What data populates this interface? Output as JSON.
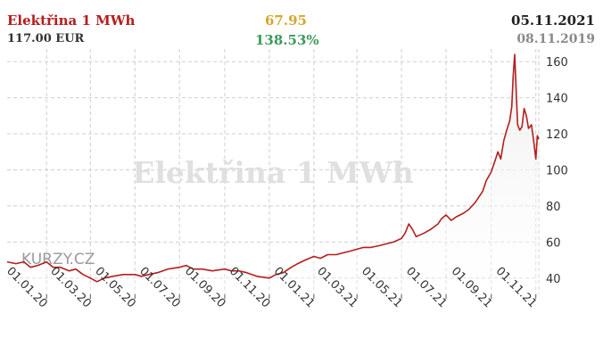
{
  "header": {
    "title": "Elektřina 1 MWh",
    "price": "117.00 EUR",
    "change_abs": "67.95",
    "change_pct": "138.53%",
    "date_end": "05.11.2021",
    "date_start": "08.11.2019"
  },
  "watermark": "Elektřina 1 MWh",
  "logo_text": "KURZY.CZ",
  "colors": {
    "line": "#b41e1e",
    "area_top": "#ececec",
    "grid": "#cfcfcf",
    "title": "#b41e1e",
    "change_abs": "#d4a72c",
    "change_pct": "#3c9a5a"
  },
  "chart_data": {
    "type": "area",
    "title": "",
    "xlabel": "",
    "ylabel": "",
    "ylim": [
      31,
      167
    ],
    "y_ticks": [
      40,
      60,
      80,
      100,
      120,
      140,
      160
    ],
    "x_ticks": [
      "01.01.20",
      "01.03.20",
      "01.05.20",
      "01.07.20",
      "01.09.20",
      "01.11.20",
      "01.01.21",
      "01.03.21",
      "01.05.21",
      "01.07.21",
      "01.09.21",
      "01.11.21"
    ],
    "grid": true,
    "legend": "none",
    "series": [
      {
        "values": [
          [
            "2019-11-08",
            49
          ],
          [
            "2019-11-20",
            48
          ],
          [
            "2019-12-01",
            49
          ],
          [
            "2019-12-10",
            46
          ],
          [
            "2019-12-20",
            47
          ],
          [
            "2020-01-01",
            49
          ],
          [
            "2020-01-10",
            46
          ],
          [
            "2020-01-20",
            46
          ],
          [
            "2020-02-01",
            44
          ],
          [
            "2020-02-10",
            45
          ],
          [
            "2020-02-20",
            42
          ],
          [
            "2020-03-01",
            40
          ],
          [
            "2020-03-10",
            38
          ],
          [
            "2020-03-20",
            40
          ],
          [
            "2020-04-01",
            41
          ],
          [
            "2020-04-15",
            42
          ],
          [
            "2020-05-01",
            42
          ],
          [
            "2020-05-10",
            41
          ],
          [
            "2020-05-20",
            42
          ],
          [
            "2020-06-01",
            43
          ],
          [
            "2020-06-15",
            45
          ],
          [
            "2020-07-01",
            46
          ],
          [
            "2020-07-10",
            47
          ],
          [
            "2020-07-20",
            45
          ],
          [
            "2020-08-01",
            45
          ],
          [
            "2020-08-15",
            44
          ],
          [
            "2020-09-01",
            45
          ],
          [
            "2020-09-10",
            44
          ],
          [
            "2020-09-20",
            44
          ],
          [
            "2020-10-01",
            43
          ],
          [
            "2020-10-15",
            41
          ],
          [
            "2020-11-01",
            40
          ],
          [
            "2020-11-10",
            42
          ],
          [
            "2020-11-20",
            43
          ],
          [
            "2020-12-01",
            46
          ],
          [
            "2020-12-10",
            48
          ],
          [
            "2020-12-20",
            50
          ],
          [
            "2021-01-01",
            52
          ],
          [
            "2021-01-10",
            51
          ],
          [
            "2021-01-20",
            53
          ],
          [
            "2021-02-01",
            53
          ],
          [
            "2021-02-10",
            54
          ],
          [
            "2021-02-20",
            55
          ],
          [
            "2021-03-01",
            56
          ],
          [
            "2021-03-10",
            57
          ],
          [
            "2021-03-20",
            57
          ],
          [
            "2021-04-01",
            58
          ],
          [
            "2021-04-10",
            59
          ],
          [
            "2021-04-20",
            60
          ],
          [
            "2021-05-01",
            62
          ],
          [
            "2021-05-06",
            65
          ],
          [
            "2021-05-11",
            70
          ],
          [
            "2021-05-16",
            67
          ],
          [
            "2021-05-21",
            63
          ],
          [
            "2021-06-01",
            65
          ],
          [
            "2021-06-10",
            67
          ],
          [
            "2021-06-20",
            70
          ],
          [
            "2021-06-25",
            73
          ],
          [
            "2021-07-01",
            75
          ],
          [
            "2021-07-08",
            72
          ],
          [
            "2021-07-15",
            74
          ],
          [
            "2021-07-25",
            76
          ],
          [
            "2021-08-01",
            78
          ],
          [
            "2021-08-10",
            82
          ],
          [
            "2021-08-20",
            88
          ],
          [
            "2021-08-25",
            94
          ],
          [
            "2021-09-01",
            99
          ],
          [
            "2021-09-06",
            105
          ],
          [
            "2021-09-10",
            110
          ],
          [
            "2021-09-14",
            106
          ],
          [
            "2021-09-18",
            116
          ],
          [
            "2021-09-22",
            122
          ],
          [
            "2021-09-26",
            127
          ],
          [
            "2021-09-29",
            135
          ],
          [
            "2021-10-01",
            152
          ],
          [
            "2021-10-03",
            164
          ],
          [
            "2021-10-05",
            145
          ],
          [
            "2021-10-07",
            125
          ],
          [
            "2021-10-10",
            122
          ],
          [
            "2021-10-13",
            124
          ],
          [
            "2021-10-16",
            134
          ],
          [
            "2021-10-19",
            130
          ],
          [
            "2021-10-22",
            123
          ],
          [
            "2021-10-26",
            125
          ],
          [
            "2021-10-29",
            116
          ],
          [
            "2021-11-01",
            106
          ],
          [
            "2021-11-03",
            119
          ],
          [
            "2021-11-05",
            117
          ]
        ]
      }
    ]
  }
}
